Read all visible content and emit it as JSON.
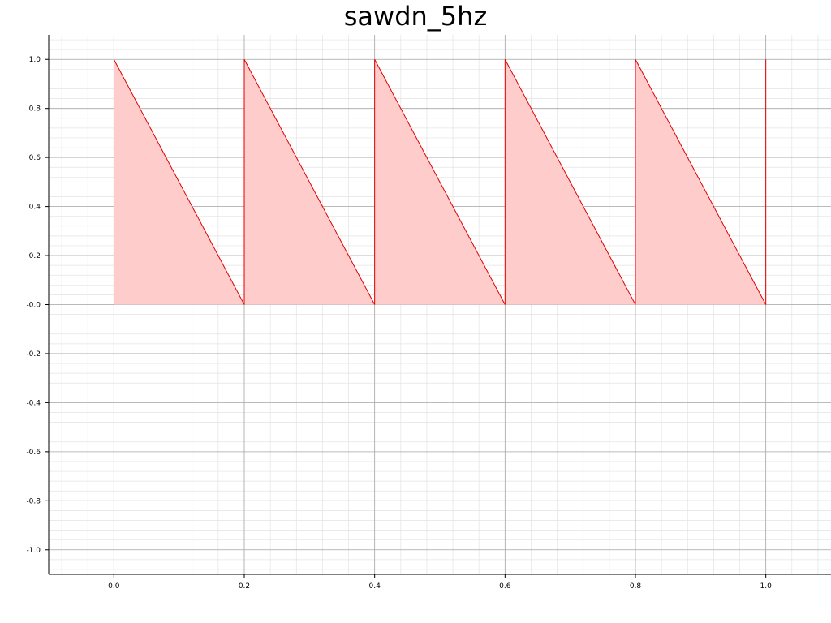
{
  "chart_data": {
    "type": "area",
    "title": "sawdn_5hz",
    "xlabel": "",
    "ylabel": "",
    "xlim": [
      -0.1,
      1.1
    ],
    "ylim": [
      -1.1,
      1.1
    ],
    "x_ticks": [
      0.0,
      0.2,
      0.4,
      0.6,
      0.8,
      1.0
    ],
    "x_tick_labels": [
      "0.0",
      "0.2",
      "0.4",
      "0.6",
      "0.8",
      "1.0"
    ],
    "y_ticks": [
      -1.0,
      -0.8,
      -0.6,
      -0.4,
      -0.2,
      0.0,
      0.2,
      0.4,
      0.6,
      0.8,
      1.0
    ],
    "y_tick_labels": [
      "-1.0",
      "-0.8",
      "-0.6",
      "-0.4",
      "-0.2",
      "-0.0",
      "0.2",
      "0.4",
      "0.6",
      "0.8",
      "1.0"
    ],
    "grid": true,
    "minor_grid": true,
    "series": [
      {
        "x": [
          0.0,
          0.2,
          0.2,
          0.4,
          0.4,
          0.6,
          0.6,
          0.8,
          0.8,
          1.0,
          1.0
        ],
        "y": [
          1.0,
          0.0,
          1.0,
          0.0,
          1.0,
          0.0,
          1.0,
          0.0,
          1.0,
          0.0,
          1.0
        ],
        "line_color": "#e00000",
        "fill_color": "#ffcccc"
      }
    ]
  }
}
